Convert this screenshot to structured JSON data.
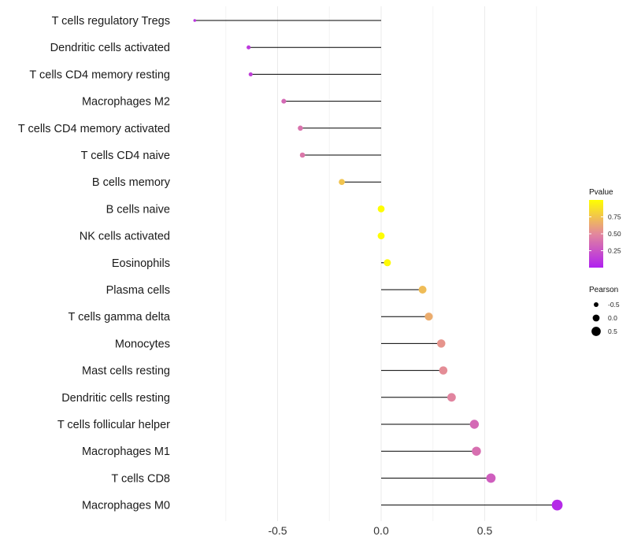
{
  "chart_data": {
    "type": "lollipop",
    "title": "",
    "xlabel": "",
    "ylabel": "",
    "xlim": [
      -0.9,
      0.9
    ],
    "x_ticks": [
      -0.5,
      0.0,
      0.5
    ],
    "x_tick_labels": [
      "-0.5",
      "0.0",
      "0.5"
    ],
    "grid": true,
    "categories": [
      "T cells regulatory  Tregs",
      "Dendritic cells activated",
      "T cells CD4 memory resting",
      "Macrophages M2",
      "T cells CD4 memory activated",
      "T cells CD4 naive",
      "B cells memory",
      "B cells naive",
      "NK cells activated",
      "Eosinophils",
      "Plasma cells",
      "T cells gamma delta",
      "Monocytes",
      "Mast cells resting",
      "Dendritic cells resting",
      "T cells follicular helper",
      "Macrophages M1",
      "T cells CD8",
      "Macrophages M0"
    ],
    "pearson": [
      -0.9,
      -0.64,
      -0.63,
      -0.47,
      -0.39,
      -0.38,
      -0.19,
      0.0,
      0.0,
      0.03,
      0.2,
      0.23,
      0.29,
      0.3,
      0.34,
      0.45,
      0.46,
      0.53,
      0.85
    ],
    "pvalue": [
      0.1,
      0.12,
      0.15,
      0.35,
      0.4,
      0.42,
      0.75,
      0.99,
      0.99,
      0.98,
      0.72,
      0.65,
      0.55,
      0.52,
      0.48,
      0.35,
      0.38,
      0.3,
      0.05
    ],
    "legend_color": {
      "title": "Pvalue",
      "ticks": [
        0.25,
        0.5,
        0.75
      ],
      "tick_labels": [
        "0.25",
        "0.50",
        "0.75"
      ],
      "range": [
        0.0,
        1.0
      ],
      "low_color": "#b020f0",
      "mid_color": "#e3889c",
      "high_color": "#ffff00",
      "position": "right"
    },
    "legend_size": {
      "title": "Pearson",
      "values": [
        -0.5,
        0.0,
        0.5
      ],
      "labels": [
        "-0.5",
        "0.0",
        "0.5"
      ],
      "position": "right"
    }
  }
}
